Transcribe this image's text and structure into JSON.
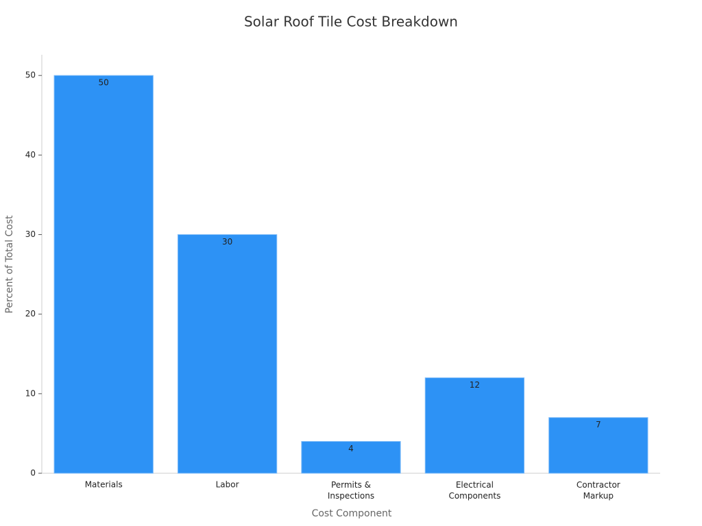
{
  "chart_data": {
    "type": "bar",
    "title": "Solar Roof Tile Cost Breakdown",
    "x_label": "Cost Component",
    "y_label": "Percent of Total Cost",
    "categories": [
      "Materials",
      "Labor",
      "Permits &\nInspections",
      "Electrical\nComponents",
      "Contractor\nMarkup"
    ],
    "values": [
      50,
      30,
      4,
      12,
      7
    ],
    "color": "#2d92f5",
    "ylim": [
      0,
      52.6
    ],
    "yticks": [
      0,
      10,
      20,
      30,
      40,
      50
    ],
    "grid": false
  }
}
